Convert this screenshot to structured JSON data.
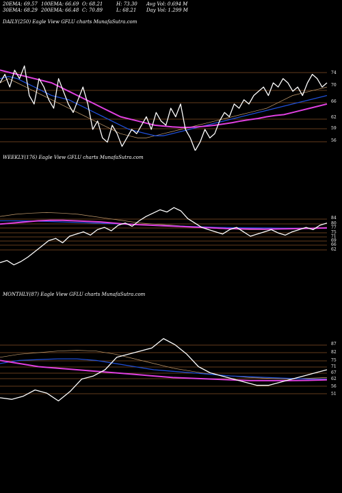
{
  "header": {
    "ema20": "20EMA: 69.57",
    "ema100": "100EMA: 66.69",
    "open": "O: 68.21",
    "high": "H: 73.30",
    "avg_vol": "Avg Vol: 0.694  M",
    "ema30": "30EMA: 68.29",
    "ema200": "200EMA: 66.48",
    "close": "C: 70.89",
    "low": "L: 68.21",
    "day_vol": "Day Vol: 1.299 M"
  },
  "colors": {
    "background": "#000000",
    "price": "#ffffff",
    "ema_short": "#1f4fd8",
    "ema_long": "#e040e0",
    "ema_mid": "#c8a070",
    "level_line": "#c87838"
  },
  "chart_data": [
    {
      "type": "line",
      "title": "DAILY(250) Eagle  View  GFLU charts MunafaSutra.com",
      "ylabels": [
        "74",
        "70",
        "66",
        "62",
        "59",
        "56"
      ],
      "series": [
        {
          "values": [
            71,
            73,
            70,
            74,
            72,
            75,
            68,
            66,
            72,
            70,
            67,
            65,
            72,
            69,
            66,
            64,
            67,
            70,
            66,
            60,
            62,
            58,
            57,
            61,
            59,
            56,
            58,
            60,
            59,
            61,
            63,
            60,
            64,
            62,
            61,
            65,
            63,
            66,
            60,
            58,
            55,
            57,
            60,
            58,
            59,
            62,
            64,
            63,
            66,
            65,
            67,
            66,
            68,
            69,
            70,
            68,
            71,
            70,
            72,
            71,
            69,
            70,
            68,
            71,
            73,
            72,
            70,
            71
          ]
        },
        {
          "values": [
            74,
            73.5,
            73,
            72.5,
            72,
            71.5,
            71,
            70,
            69,
            68,
            67,
            66,
            65,
            64,
            63,
            62.5,
            62,
            61.5,
            61,
            60.8,
            60.6,
            60.5,
            60.5,
            60.6,
            60.8,
            61,
            61.3,
            61.6,
            62,
            62.3,
            62.6,
            63,
            63.3,
            63.5,
            64,
            64.5,
            65,
            65.5,
            66
          ]
        },
        {
          "values": [
            72,
            72.5,
            72,
            71,
            70,
            69,
            68,
            67.5,
            67,
            66,
            65,
            64,
            63,
            62,
            61,
            60,
            59.5,
            59,
            58.5,
            58.5,
            59,
            59.5,
            60,
            60.5,
            61,
            61.5,
            62,
            62.5,
            63,
            63.5,
            64,
            64.5,
            65,
            65.5,
            66,
            66.5,
            67,
            67.5,
            68
          ]
        },
        {
          "values": [
            71,
            72,
            71,
            70,
            69,
            68,
            67,
            66,
            65,
            64,
            63,
            62,
            61,
            60,
            59,
            58.5,
            58,
            58,
            58.5,
            59,
            59.5,
            60,
            60.5,
            61,
            61.5,
            62,
            62.5,
            63,
            63.5,
            64,
            64.5,
            65,
            66,
            67,
            68,
            68.5,
            69,
            69.5,
            70
          ]
        }
      ]
    },
    {
      "type": "line",
      "title": "WEEKLY(176) Eagle  View  GFLU charts MunafaSutra.com",
      "ylabels": [
        "84",
        "80",
        "77",
        "75",
        "71",
        "69",
        "66",
        "62"
      ],
      "series": [
        {
          "values": [
            40,
            42,
            38,
            41,
            45,
            50,
            55,
            60,
            62,
            58,
            64,
            66,
            68,
            65,
            70,
            72,
            69,
            74,
            76,
            73,
            78,
            82,
            85,
            88,
            86,
            90,
            87,
            80,
            76,
            72,
            70,
            68,
            66,
            70,
            72,
            68,
            64,
            66,
            68,
            70,
            67,
            65,
            68,
            70,
            72,
            70,
            74,
            76
          ]
        },
        {
          "values": [
            75,
            76,
            77,
            78,
            78.5,
            78.5,
            78,
            77.5,
            77,
            76,
            75,
            74.5,
            74,
            73.5,
            73,
            72.5,
            72,
            71.5,
            71,
            70.8,
            70.6,
            70.5,
            70.6,
            70.8,
            71,
            71.2,
            71.5
          ]
        },
        {
          "values": [
            78,
            78,
            77.8,
            77.5,
            77,
            76.5,
            76,
            75.5,
            75,
            74.5,
            74,
            73.5,
            73,
            72.5,
            72,
            71.8,
            71.6,
            71.5,
            71.4,
            71.3,
            71.2,
            71.2
          ]
        },
        {
          "values": [
            82,
            84,
            85,
            85.5,
            85,
            84,
            82,
            80,
            78,
            76,
            75,
            74,
            73,
            72,
            71,
            70.5,
            70,
            70,
            70.5,
            71,
            71.5,
            72
          ]
        }
      ]
    },
    {
      "type": "line",
      "title": "MONTHLY(87) Eagle  View  GFLU charts MunafaSutra.com",
      "ylabels": [
        "87",
        "82",
        "75",
        "71",
        "67",
        "62",
        "56",
        "51"
      ],
      "series": [
        {
          "values": [
            52,
            51,
            53,
            57,
            55,
            50,
            56,
            64,
            66,
            70,
            78,
            80,
            82,
            84,
            90,
            86,
            80,
            72,
            68,
            66,
            64,
            62,
            60,
            60,
            62,
            64,
            66,
            68,
            70
          ]
        },
        {
          "values": [
            76,
            74,
            72,
            71,
            70,
            69,
            68,
            67,
            66,
            65,
            64.5,
            64,
            63.5,
            63,
            63,
            63,
            63.2,
            63.5
          ]
        },
        {
          "values": [
            74,
            76,
            76.5,
            77,
            77,
            76,
            74,
            72,
            70,
            69,
            68,
            67,
            66,
            65.5,
            65,
            64.5,
            64,
            64
          ]
        },
        {
          "values": [
            78,
            80,
            81,
            82,
            82.5,
            82,
            80,
            77,
            74,
            71,
            69,
            67,
            66,
            65,
            64.5,
            64,
            64.5,
            65
          ]
        }
      ]
    }
  ]
}
